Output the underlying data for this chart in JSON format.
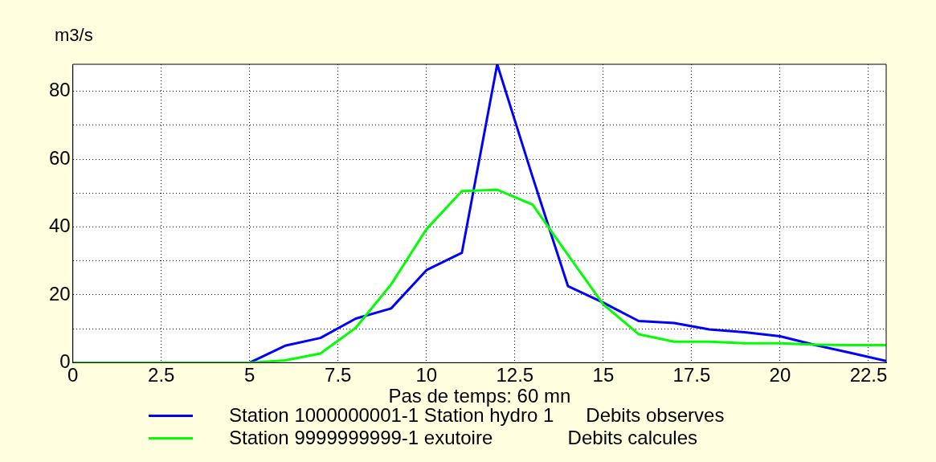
{
  "chart_data": {
    "type": "line",
    "xlabel": "Pas de temps: 60 mn",
    "ylabel": "m3/s",
    "xlim": [
      0,
      23
    ],
    "xticks": [
      0,
      2.5,
      5,
      7.5,
      10,
      12.5,
      15,
      17.5,
      20,
      22.5
    ],
    "ylim": [
      0,
      88
    ],
    "yticks": [
      0,
      {
        "value": 10,
        "label": null
      },
      20,
      {
        "value": 30,
        "label": null
      },
      40,
      {
        "value": 50,
        "label": null
      },
      60,
      {
        "value": 70,
        "label": null
      },
      80
    ],
    "grid": true,
    "legend": "bottom",
    "marker": "none",
    "line_style": "solid",
    "x": [
      0,
      1,
      2,
      3,
      4,
      5,
      6,
      7,
      8,
      9,
      10,
      11,
      12,
      13,
      14,
      15,
      16,
      17,
      18,
      19,
      20,
      21,
      22,
      23
    ],
    "series": [
      {
        "name": "Station 1000000001-1 Station hydro 1      Debits observes",
        "color": "#0000ff",
        "values": [
          null,
          null,
          null,
          null,
          null,
          0,
          5,
          7.3,
          13,
          16,
          27.3,
          32.4,
          88,
          54.8,
          22.6,
          17.7,
          12.3,
          11.7,
          9.8,
          9,
          7.8,
          5.2,
          2.9,
          0.5
        ]
      },
      {
        "name": "Station 9999999999-1 exutoire              Debits calcules",
        "color": "#00ff00",
        "values": [
          0,
          0,
          0,
          0,
          0,
          0,
          0.7,
          2.7,
          10.3,
          23.1,
          39.4,
          50.6,
          51,
          46.6,
          31.8,
          17.2,
          8.4,
          6.2,
          6.2,
          5.7,
          5.7,
          5.3,
          5.2,
          5.2
        ]
      }
    ]
  }
}
